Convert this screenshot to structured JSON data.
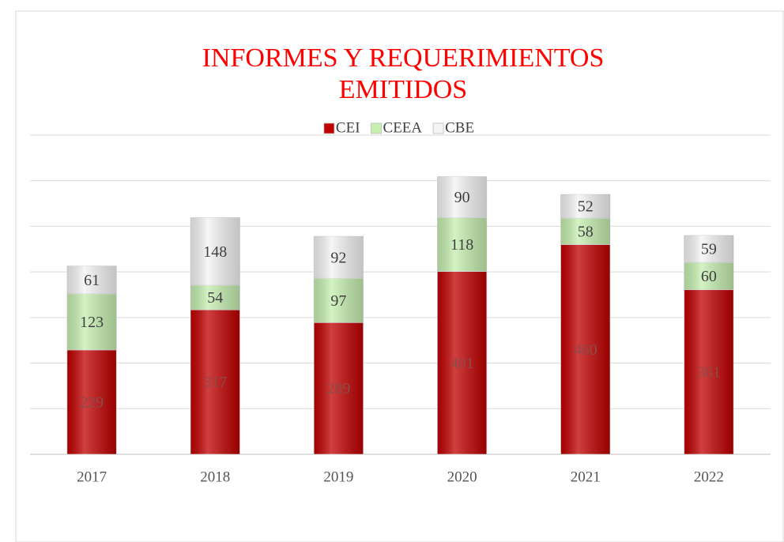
{
  "chart_data": {
    "type": "stacked_bar",
    "title": "INFORMES Y REQUERIMIENTOS EMITIDOS",
    "categories": [
      "2017",
      "2018",
      "2019",
      "2020",
      "2021",
      "2022"
    ],
    "series": [
      {
        "name": "CEI",
        "color": "#c00000",
        "values": [
          229,
          317,
          289,
          401,
          460,
          361
        ]
      },
      {
        "name": "CEEA",
        "color": "#c6efb0",
        "values": [
          123,
          54,
          97,
          118,
          58,
          60
        ]
      },
      {
        "name": "CBE",
        "color": "#f4f4f4",
        "values": [
          61,
          148,
          92,
          90,
          52,
          59
        ]
      }
    ],
    "ylim": [
      0,
      700
    ],
    "yticks": [
      0,
      100,
      200,
      300,
      400,
      500,
      600,
      700
    ],
    "grid": true
  }
}
